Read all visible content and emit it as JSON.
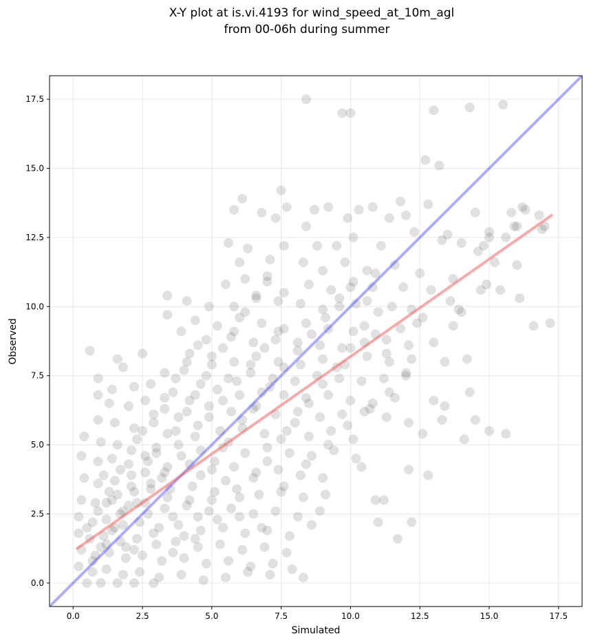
{
  "chart_data": {
    "type": "scatter",
    "title_line1": "X-Y plot at is.vi.4193 for wind_speed_at_10m_agl",
    "title_line2": "from 00-06h during summer",
    "xlabel": "Simulated",
    "ylabel": "Observed",
    "xlim": [
      -0.85,
      18.35
    ],
    "ylim": [
      -0.85,
      18.35
    ],
    "xticks": [
      0.0,
      2.5,
      5.0,
      7.5,
      10.0,
      12.5,
      15.0,
      17.5
    ],
    "yticks": [
      0.0,
      2.5,
      5.0,
      7.5,
      10.0,
      12.5,
      15.0,
      17.5
    ],
    "xtick_labels": [
      "0.0",
      "2.5",
      "5.0",
      "7.5",
      "10.0",
      "12.5",
      "15.0",
      "17.5"
    ],
    "ytick_labels": [
      "0.0",
      "2.5",
      "5.0",
      "7.5",
      "10.0",
      "12.5",
      "15.0",
      "17.5"
    ],
    "grid": true,
    "point_color": "#555555",
    "identity_line": {
      "x": [
        -0.85,
        18.35
      ],
      "y": [
        -0.85,
        18.35
      ],
      "color": "#3333ff"
    },
    "fit_line": {
      "x": [
        0.15,
        17.25
      ],
      "y": [
        1.25,
        13.3
      ],
      "color": "#ef5555"
    },
    "points": [
      [
        8.4,
        17.5
      ],
      [
        9.7,
        17.0
      ],
      [
        10.0,
        17.0
      ],
      [
        13.0,
        17.1
      ],
      [
        14.3,
        17.2
      ],
      [
        15.5,
        17.3
      ],
      [
        12.7,
        15.3
      ],
      [
        13.2,
        15.1
      ],
      [
        7.5,
        14.2
      ],
      [
        6.1,
        13.9
      ],
      [
        5.8,
        13.5
      ],
      [
        6.8,
        13.4
      ],
      [
        7.7,
        13.6
      ],
      [
        8.7,
        13.5
      ],
      [
        9.2,
        13.6
      ],
      [
        10.3,
        13.5
      ],
      [
        10.8,
        13.6
      ],
      [
        11.8,
        13.8
      ],
      [
        12.8,
        13.7
      ],
      [
        14.5,
        13.4
      ],
      [
        15.8,
        13.4
      ],
      [
        16.2,
        13.6
      ],
      [
        16.8,
        13.3
      ],
      [
        7.3,
        13.2
      ],
      [
        8.4,
        12.9
      ],
      [
        9.9,
        13.2
      ],
      [
        11.4,
        13.2
      ],
      [
        12.0,
        13.3
      ],
      [
        13.3,
        12.4
      ],
      [
        14.0,
        12.3
      ],
      [
        15.0,
        12.7
      ],
      [
        15.6,
        12.5
      ],
      [
        16.0,
        12.9
      ],
      [
        16.9,
        12.8
      ],
      [
        5.6,
        12.3
      ],
      [
        6.3,
        12.1
      ],
      [
        7.6,
        12.2
      ],
      [
        8.8,
        12.2
      ],
      [
        9.5,
        12.2
      ],
      [
        10.1,
        12.5
      ],
      [
        11.1,
        12.2
      ],
      [
        12.3,
        12.7
      ],
      [
        13.5,
        12.6
      ],
      [
        14.6,
        12.0
      ],
      [
        15.0,
        12.5
      ],
      [
        6.0,
        11.6
      ],
      [
        7.1,
        11.7
      ],
      [
        8.3,
        11.6
      ],
      [
        9.0,
        11.3
      ],
      [
        9.8,
        11.6
      ],
      [
        10.6,
        11.3
      ],
      [
        11.6,
        11.5
      ],
      [
        12.5,
        11.2
      ],
      [
        13.7,
        11.0
      ],
      [
        16.0,
        11.5
      ],
      [
        5.5,
        10.8
      ],
      [
        6.2,
        11.0
      ],
      [
        7.0,
        10.9
      ],
      [
        7.6,
        10.5
      ],
      [
        8.5,
        10.8
      ],
      [
        9.3,
        10.6
      ],
      [
        10.0,
        10.7
      ],
      [
        10.8,
        10.7
      ],
      [
        11.9,
        10.7
      ],
      [
        12.9,
        10.6
      ],
      [
        14.9,
        10.8
      ],
      [
        15.4,
        10.6
      ],
      [
        3.4,
        10.4
      ],
      [
        4.1,
        10.2
      ],
      [
        4.9,
        10.0
      ],
      [
        5.8,
        10.0
      ],
      [
        6.6,
        10.3
      ],
      [
        7.4,
        10.2
      ],
      [
        8.2,
        10.1
      ],
      [
        9.0,
        9.9
      ],
      [
        9.6,
        10.0
      ],
      [
        10.6,
        10.2
      ],
      [
        11.5,
        10.0
      ],
      [
        12.2,
        9.9
      ],
      [
        13.6,
        10.2
      ],
      [
        14.0,
        9.8
      ],
      [
        16.1,
        10.3
      ],
      [
        3.4,
        9.7
      ],
      [
        4.4,
        9.5
      ],
      [
        5.2,
        9.3
      ],
      [
        6.0,
        9.6
      ],
      [
        6.8,
        9.4
      ],
      [
        7.6,
        9.2
      ],
      [
        8.4,
        9.4
      ],
      [
        9.2,
        9.2
      ],
      [
        10.1,
        9.1
      ],
      [
        10.9,
        9.0
      ],
      [
        11.8,
        9.2
      ],
      [
        12.6,
        9.6
      ],
      [
        13.7,
        9.3
      ],
      [
        16.6,
        9.3
      ],
      [
        17.2,
        9.4
      ],
      [
        3.9,
        9.1
      ],
      [
        4.8,
        8.8
      ],
      [
        5.7,
        8.9
      ],
      [
        6.5,
        8.7
      ],
      [
        7.3,
        8.8
      ],
      [
        8.1,
        8.7
      ],
      [
        8.9,
        8.6
      ],
      [
        9.7,
        8.5
      ],
      [
        10.5,
        8.7
      ],
      [
        11.3,
        8.8
      ],
      [
        12.1,
        8.6
      ],
      [
        13.0,
        8.7
      ],
      [
        4.2,
        8.3
      ],
      [
        5.0,
        8.2
      ],
      [
        5.8,
        8.0
      ],
      [
        6.6,
        8.2
      ],
      [
        7.4,
        8.0
      ],
      [
        8.2,
        7.9
      ],
      [
        9.0,
        8.1
      ],
      [
        9.8,
        7.9
      ],
      [
        10.6,
        8.2
      ],
      [
        11.4,
        8.0
      ],
      [
        12.2,
        8.1
      ],
      [
        13.4,
        8.0
      ],
      [
        14.2,
        8.1
      ],
      [
        0.6,
        8.4
      ],
      [
        1.6,
        8.1
      ],
      [
        1.8,
        7.8
      ],
      [
        2.5,
        8.3
      ],
      [
        3.3,
        7.6
      ],
      [
        4.0,
        7.7
      ],
      [
        4.8,
        7.5
      ],
      [
        5.6,
        7.4
      ],
      [
        6.4,
        7.6
      ],
      [
        7.2,
        7.4
      ],
      [
        8.0,
        7.3
      ],
      [
        8.8,
        7.5
      ],
      [
        9.6,
        7.4
      ],
      [
        10.4,
        7.3
      ],
      [
        11.2,
        7.4
      ],
      [
        12.0,
        7.6
      ],
      [
        0.9,
        7.4
      ],
      [
        1.4,
        7.0
      ],
      [
        2.2,
        7.1
      ],
      [
        2.8,
        7.2
      ],
      [
        3.6,
        6.9
      ],
      [
        4.4,
        6.8
      ],
      [
        5.2,
        7.0
      ],
      [
        6.0,
        6.8
      ],
      [
        6.8,
        6.9
      ],
      [
        7.6,
        6.8
      ],
      [
        8.4,
        6.7
      ],
      [
        9.2,
        6.8
      ],
      [
        10.0,
        6.6
      ],
      [
        10.8,
        6.5
      ],
      [
        11.6,
        6.7
      ],
      [
        13.4,
        6.4
      ],
      [
        14.3,
        6.9
      ],
      [
        0.9,
        6.8
      ],
      [
        1.3,
        6.5
      ],
      [
        2.0,
        6.4
      ],
      [
        2.6,
        6.6
      ],
      [
        3.3,
        6.3
      ],
      [
        4.1,
        6.2
      ],
      [
        4.9,
        6.4
      ],
      [
        5.7,
        6.2
      ],
      [
        6.5,
        6.3
      ],
      [
        7.3,
        6.1
      ],
      [
        8.1,
        6.2
      ],
      [
        8.9,
        6.0
      ],
      [
        9.7,
        6.1
      ],
      [
        10.5,
        6.2
      ],
      [
        11.3,
        6.0
      ],
      [
        12.1,
        5.8
      ],
      [
        13.3,
        5.9
      ],
      [
        14.5,
        5.9
      ],
      [
        0.9,
        5.9
      ],
      [
        1.5,
        5.8
      ],
      [
        2.2,
        5.6
      ],
      [
        2.9,
        5.8
      ],
      [
        3.7,
        5.5
      ],
      [
        4.5,
        5.7
      ],
      [
        5.3,
        5.5
      ],
      [
        6.1,
        5.6
      ],
      [
        6.9,
        5.4
      ],
      [
        7.7,
        5.5
      ],
      [
        8.5,
        5.3
      ],
      [
        9.3,
        5.5
      ],
      [
        10.1,
        5.2
      ],
      [
        12.6,
        5.4
      ],
      [
        14.1,
        5.2
      ],
      [
        15.0,
        5.5
      ],
      [
        15.6,
        5.4
      ],
      [
        0.4,
        5.3
      ],
      [
        1.0,
        5.1
      ],
      [
        1.6,
        5.0
      ],
      [
        2.3,
        5.2
      ],
      [
        3.0,
        4.9
      ],
      [
        3.8,
        5.0
      ],
      [
        4.6,
        4.8
      ],
      [
        5.4,
        4.9
      ],
      [
        6.2,
        4.7
      ],
      [
        7.0,
        4.9
      ],
      [
        7.8,
        4.7
      ],
      [
        8.6,
        4.6
      ],
      [
        9.4,
        4.8
      ],
      [
        10.2,
        4.5
      ],
      [
        0.3,
        4.6
      ],
      [
        0.9,
        4.4
      ],
      [
        1.4,
        4.5
      ],
      [
        2.0,
        4.3
      ],
      [
        2.7,
        4.4
      ],
      [
        3.4,
        4.2
      ],
      [
        4.2,
        4.3
      ],
      [
        5.0,
        4.1
      ],
      [
        5.8,
        4.2
      ],
      [
        6.6,
        4.0
      ],
      [
        7.4,
        4.1
      ],
      [
        8.2,
        3.9
      ],
      [
        9.0,
        3.8
      ],
      [
        10.4,
        4.2
      ],
      [
        12.1,
        4.1
      ],
      [
        12.8,
        3.9
      ],
      [
        0.4,
        3.8
      ],
      [
        0.9,
        3.6
      ],
      [
        1.5,
        3.7
      ],
      [
        2.1,
        3.5
      ],
      [
        2.8,
        3.6
      ],
      [
        3.5,
        3.4
      ],
      [
        4.3,
        3.5
      ],
      [
        5.1,
        3.3
      ],
      [
        5.9,
        3.4
      ],
      [
        6.7,
        3.2
      ],
      [
        7.5,
        3.3
      ],
      [
        8.3,
        3.1
      ],
      [
        9.1,
        3.2
      ],
      [
        0.3,
        3.0
      ],
      [
        0.8,
        2.9
      ],
      [
        1.4,
        3.0
      ],
      [
        2.0,
        2.8
      ],
      [
        2.6,
        2.9
      ],
      [
        3.3,
        2.7
      ],
      [
        4.1,
        2.8
      ],
      [
        4.9,
        2.6
      ],
      [
        5.7,
        2.7
      ],
      [
        6.5,
        2.5
      ],
      [
        7.3,
        2.6
      ],
      [
        8.1,
        2.4
      ],
      [
        8.9,
        2.6
      ],
      [
        10.9,
        3.0
      ],
      [
        11.2,
        3.0
      ],
      [
        0.2,
        2.4
      ],
      [
        0.7,
        2.2
      ],
      [
        1.2,
        2.3
      ],
      [
        1.8,
        2.1
      ],
      [
        2.4,
        2.2
      ],
      [
        3.1,
        2.0
      ],
      [
        3.8,
        2.1
      ],
      [
        4.6,
        1.9
      ],
      [
        5.4,
        2.0
      ],
      [
        6.2,
        1.8
      ],
      [
        7.0,
        1.9
      ],
      [
        7.8,
        1.7
      ],
      [
        8.6,
        2.1
      ],
      [
        11.0,
        2.2
      ],
      [
        12.2,
        2.2
      ],
      [
        0.2,
        1.8
      ],
      [
        0.6,
        1.6
      ],
      [
        1.1,
        1.7
      ],
      [
        1.7,
        1.5
      ],
      [
        2.3,
        1.6
      ],
      [
        3.0,
        1.4
      ],
      [
        3.7,
        1.5
      ],
      [
        4.5,
        1.3
      ],
      [
        5.3,
        1.4
      ],
      [
        6.1,
        1.2
      ],
      [
        6.9,
        1.3
      ],
      [
        7.7,
        1.1
      ],
      [
        11.7,
        1.6
      ],
      [
        0.3,
        1.2
      ],
      [
        0.8,
        1.0
      ],
      [
        1.3,
        1.1
      ],
      [
        1.9,
        0.9
      ],
      [
        2.5,
        1.0
      ],
      [
        3.2,
        0.8
      ],
      [
        4.0,
        0.9
      ],
      [
        4.8,
        0.7
      ],
      [
        5.6,
        0.8
      ],
      [
        6.4,
        0.6
      ],
      [
        7.2,
        0.7
      ],
      [
        0.2,
        0.6
      ],
      [
        0.7,
        0.4
      ],
      [
        1.2,
        0.5
      ],
      [
        1.8,
        0.3
      ],
      [
        2.4,
        0.4
      ],
      [
        3.1,
        0.2
      ],
      [
        3.9,
        0.3
      ],
      [
        4.7,
        0.1
      ],
      [
        5.5,
        0.2
      ],
      [
        6.3,
        0.4
      ],
      [
        7.1,
        0.3
      ],
      [
        7.9,
        0.5
      ],
      [
        8.3,
        0.2
      ],
      [
        0.5,
        0.0
      ],
      [
        1.0,
        0.0
      ],
      [
        1.6,
        0.0
      ],
      [
        2.2,
        0.0
      ],
      [
        2.9,
        0.0
      ],
      [
        1.1,
        3.9
      ],
      [
        1.6,
        3.2
      ],
      [
        2.1,
        3.9
      ],
      [
        2.6,
        4.6
      ],
      [
        1.5,
        2.0
      ],
      [
        1.9,
        1.3
      ],
      [
        2.9,
        1.8
      ],
      [
        3.6,
        2.4
      ],
      [
        4.2,
        3.0
      ],
      [
        4.6,
        3.9
      ],
      [
        5.1,
        4.4
      ],
      [
        5.6,
        5.1
      ],
      [
        6.1,
        5.9
      ],
      [
        6.6,
        6.4
      ],
      [
        7.1,
        7.1
      ],
      [
        7.6,
        7.8
      ],
      [
        8.1,
        8.4
      ],
      [
        8.6,
        9.0
      ],
      [
        9.1,
        9.6
      ],
      [
        9.6,
        10.3
      ],
      [
        10.1,
        10.9
      ],
      [
        3.2,
        3.8
      ],
      [
        3.9,
        4.6
      ],
      [
        4.4,
        5.3
      ],
      [
        4.9,
        6.0
      ],
      [
        5.4,
        6.6
      ],
      [
        5.9,
        7.3
      ],
      [
        6.4,
        7.9
      ],
      [
        6.9,
        8.5
      ],
      [
        7.4,
        9.1
      ],
      [
        2.3,
        2.9
      ],
      [
        2.8,
        3.4
      ],
      [
        3.3,
        4.0
      ],
      [
        1.2,
        1.4
      ],
      [
        1.7,
        2.5
      ],
      [
        2.2,
        1.2
      ],
      [
        2.7,
        2.5
      ],
      [
        3.4,
        3.1
      ],
      [
        4.0,
        1.7
      ],
      [
        4.5,
        2.4
      ],
      [
        5.0,
        3.0
      ],
      [
        5.5,
        3.7
      ],
      [
        6.0,
        3.1
      ],
      [
        6.5,
        3.8
      ],
      [
        7.0,
        4.4
      ],
      [
        7.5,
        5.2
      ],
      [
        8.0,
        5.8
      ],
      [
        8.5,
        6.5
      ],
      [
        9.0,
        7.2
      ],
      [
        9.5,
        7.8
      ],
      [
        10.0,
        8.5
      ],
      [
        10.5,
        9.3
      ],
      [
        11.0,
        9.8
      ],
      [
        0.5,
        2.0
      ],
      [
        0.9,
        2.6
      ],
      [
        1.3,
        3.3
      ],
      [
        1.7,
        4.1
      ],
      [
        2.1,
        4.8
      ],
      [
        2.5,
        5.5
      ],
      [
        2.9,
        6.1
      ],
      [
        3.3,
        6.7
      ],
      [
        3.7,
        7.4
      ],
      [
        4.1,
        8.0
      ],
      [
        4.5,
        8.6
      ],
      [
        1.0,
        1.3
      ],
      [
        1.4,
        1.9
      ],
      [
        1.8,
        2.6
      ],
      [
        2.2,
        3.3
      ],
      [
        2.6,
        4.0
      ],
      [
        3.0,
        4.7
      ],
      [
        3.4,
        5.4
      ],
      [
        3.8,
        6.0
      ],
      [
        4.2,
        6.6
      ],
      [
        4.6,
        7.2
      ],
      [
        5.0,
        7.9
      ],
      [
        5.4,
        8.5
      ],
      [
        5.8,
        9.1
      ],
      [
        6.2,
        9.8
      ],
      [
        6.6,
        10.4
      ],
      [
        7.0,
        11.1
      ],
      [
        0.7,
        0.8
      ],
      [
        1.2,
        2.9
      ],
      [
        3.6,
        1.1
      ],
      [
        4.4,
        1.6
      ],
      [
        5.2,
        2.3
      ],
      [
        6.0,
        2.4
      ],
      [
        6.8,
        2.0
      ],
      [
        7.6,
        3.5
      ],
      [
        8.4,
        4.3
      ],
      [
        9.2,
        5.0
      ],
      [
        9.9,
        5.7
      ],
      [
        10.7,
        6.3
      ],
      [
        11.4,
        6.9
      ],
      [
        12.0,
        7.5
      ],
      [
        13.0,
        6.6
      ],
      [
        10.2,
        10.1
      ],
      [
        10.9,
        11.2
      ],
      [
        11.3,
        8.3
      ],
      [
        12.4,
        9.4
      ],
      [
        13.9,
        9.9
      ],
      [
        14.7,
        10.6
      ],
      [
        15.2,
        11.6
      ],
      [
        14.8,
        12.2
      ],
      [
        15.9,
        12.9
      ],
      [
        16.3,
        13.5
      ],
      [
        17.0,
        12.9
      ]
    ]
  }
}
